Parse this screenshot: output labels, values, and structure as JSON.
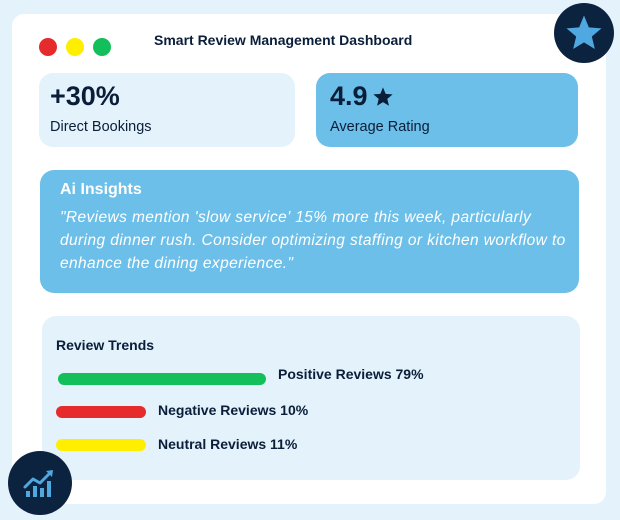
{
  "window": {
    "title": "Smart Review Management Dashboard",
    "controls": {
      "close": "#e52b2b",
      "minimize": "#ffee00",
      "maximize": "#13bf5a"
    }
  },
  "stats": {
    "bookings": {
      "value": "+30%",
      "label": "Direct Bookings"
    },
    "rating": {
      "value": "4.9",
      "label": "Average Rating",
      "icon": "star-icon"
    }
  },
  "insights": {
    "title": "Ai Insights",
    "text": "\"Reviews mention 'slow service' 15% more this week, particularly during dinner rush. Consider optimizing staffing or kitchen workflow to enhance the dining experience.\""
  },
  "trends": {
    "title": "Review Trends",
    "items": [
      {
        "label": "Positive Reviews 79%",
        "value": 79,
        "color": "#13bf5a"
      },
      {
        "label": "Negative Reviews 10%",
        "value": 10,
        "color": "#e52b2b"
      },
      {
        "label": "Neutral Reviews 11%",
        "value": 11,
        "color": "#ffee00"
      }
    ]
  },
  "badges": {
    "top": "star-icon",
    "bottom": "trend-chart-icon"
  }
}
